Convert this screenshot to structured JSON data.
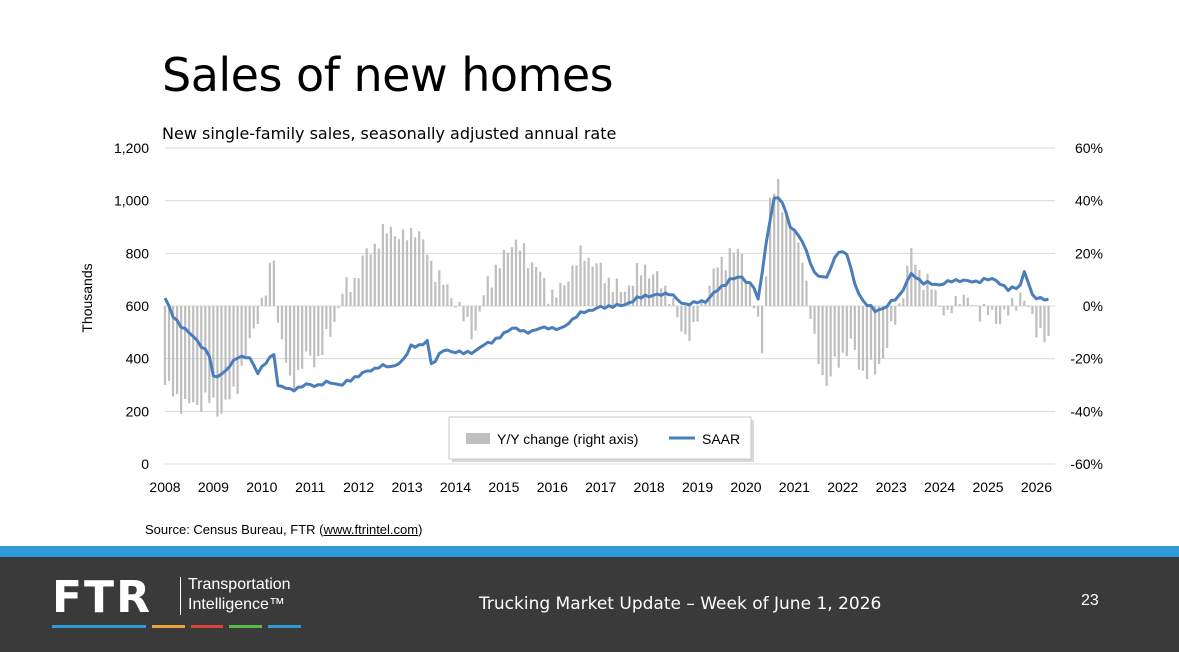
{
  "slide": {
    "title": "Sales of new homes",
    "source_prefix": "Source: Census Bureau, FTR (",
    "source_link": "www.ftrintel.com",
    "source_suffix": ")"
  },
  "footer": {
    "logo_text": "FTR",
    "logo_sub_line1": "Transportation",
    "logo_sub_line2": "Intelligence™",
    "title": "Trucking Market Update – Week of June 1, 2026",
    "page_number": "23",
    "logo_bar_colors": [
      "#2e9bd6",
      "#e8a33c",
      "#d9463b",
      "#5cb947",
      "#2e9bd6"
    ]
  },
  "chart_data": {
    "type": "bar+line",
    "subtitle": "New single-family sales, seasonally adjusted annual rate",
    "ylabel_left": "Thousands",
    "ylim_left": [
      0,
      1200
    ],
    "yticks_left": [
      0,
      200,
      400,
      600,
      800,
      1000,
      1200
    ],
    "ytick_labels_left": [
      "0",
      "200",
      "400",
      "600",
      "800",
      "1,000",
      "1,200"
    ],
    "ylim_right": [
      -60,
      60
    ],
    "yticks_right": [
      -60,
      -40,
      -20,
      0,
      20,
      40,
      60
    ],
    "ytick_labels_right": [
      "-60%",
      "-40%",
      "-20%",
      "0%",
      "20%",
      "40%",
      "60%"
    ],
    "x_start": "2008-01",
    "x_end": "2026-04",
    "x_tick_labels": [
      "2008",
      "2009",
      "2010",
      "2011",
      "2012",
      "2013",
      "2014",
      "2015",
      "2016",
      "2017",
      "2018",
      "2019",
      "2020",
      "2021",
      "2022",
      "2023",
      "2024",
      "2025",
      "2026"
    ],
    "grid": "horizontal",
    "legend": {
      "placement": "bottom-center",
      "bar_label": "Y/Y change (right axis)",
      "line_label": "SAAR"
    },
    "colors": {
      "bars": "#bfbfbf",
      "line": "#4a7ebb",
      "grid": "#d9d9d9"
    },
    "series": [
      {
        "name": "SAAR",
        "axis": "left",
        "anchors": [
          [
            "2008-01",
            630
          ],
          [
            "2008-03",
            560
          ],
          [
            "2008-06",
            510
          ],
          [
            "2008-09",
            470
          ],
          [
            "2008-12",
            410
          ],
          [
            "2009-01",
            330
          ],
          [
            "2009-04",
            350
          ],
          [
            "2009-07",
            410
          ],
          [
            "2009-10",
            400
          ],
          [
            "2009-12",
            350
          ],
          [
            "2010-03",
            400
          ],
          [
            "2010-04",
            420
          ],
          [
            "2010-05",
            300
          ],
          [
            "2010-08",
            280
          ],
          [
            "2010-12",
            300
          ],
          [
            "2011-03",
            300
          ],
          [
            "2011-06",
            310
          ],
          [
            "2011-09",
            300
          ],
          [
            "2011-12",
            330
          ],
          [
            "2012-03",
            350
          ],
          [
            "2012-06",
            370
          ],
          [
            "2012-09",
            370
          ],
          [
            "2012-12",
            390
          ],
          [
            "2013-02",
            450
          ],
          [
            "2013-05",
            450
          ],
          [
            "2013-06",
            470
          ],
          [
            "2013-07",
            380
          ],
          [
            "2013-10",
            430
          ],
          [
            "2013-12",
            430
          ],
          [
            "2014-03",
            420
          ],
          [
            "2014-06",
            430
          ],
          [
            "2014-09",
            460
          ],
          [
            "2014-12",
            480
          ],
          [
            "2015-03",
            520
          ],
          [
            "2015-06",
            500
          ],
          [
            "2015-09",
            510
          ],
          [
            "2015-12",
            520
          ],
          [
            "2016-03",
            510
          ],
          [
            "2016-06",
            550
          ],
          [
            "2016-09",
            580
          ],
          [
            "2016-12",
            590
          ],
          [
            "2017-03",
            600
          ],
          [
            "2017-06",
            600
          ],
          [
            "2017-09",
            620
          ],
          [
            "2017-12",
            640
          ],
          [
            "2018-03",
            640
          ],
          [
            "2018-06",
            650
          ],
          [
            "2018-09",
            610
          ],
          [
            "2018-12",
            610
          ],
          [
            "2019-03",
            620
          ],
          [
            "2019-06",
            660
          ],
          [
            "2019-09",
            700
          ],
          [
            "2019-12",
            710
          ],
          [
            "2020-03",
            670
          ],
          [
            "2020-04",
            620
          ],
          [
            "2020-06",
            840
          ],
          [
            "2020-08",
            1010
          ],
          [
            "2020-10",
            1000
          ],
          [
            "2020-12",
            900
          ],
          [
            "2021-03",
            850
          ],
          [
            "2021-06",
            720
          ],
          [
            "2021-09",
            710
          ],
          [
            "2021-12",
            810
          ],
          [
            "2022-02",
            800
          ],
          [
            "2022-04",
            680
          ],
          [
            "2022-06",
            620
          ],
          [
            "2022-09",
            580
          ],
          [
            "2022-12",
            600
          ],
          [
            "2023-03",
            640
          ],
          [
            "2023-06",
            720
          ],
          [
            "2023-09",
            690
          ],
          [
            "2023-12",
            680
          ],
          [
            "2024-03",
            690
          ],
          [
            "2024-06",
            700
          ],
          [
            "2024-09",
            690
          ],
          [
            "2024-12",
            700
          ],
          [
            "2025-03",
            700
          ],
          [
            "2025-06",
            660
          ],
          [
            "2025-09",
            680
          ],
          [
            "2025-10",
            730
          ],
          [
            "2025-12",
            640
          ],
          [
            "2026-02",
            630
          ],
          [
            "2026-04",
            620
          ]
        ]
      },
      {
        "name": "Y/Y change (right axis)",
        "axis": "right",
        "anchors": [
          [
            "2008-01",
            -30
          ],
          [
            "2008-06",
            -38
          ],
          [
            "2008-12",
            -36
          ],
          [
            "2009-03",
            -40
          ],
          [
            "2009-06",
            -33
          ],
          [
            "2009-09",
            -20
          ],
          [
            "2009-12",
            -3
          ],
          [
            "2010-02",
            5
          ],
          [
            "2010-04",
            20
          ],
          [
            "2010-05",
            -5
          ],
          [
            "2010-08",
            -30
          ],
          [
            "2010-12",
            -20
          ],
          [
            "2011-03",
            -20
          ],
          [
            "2011-06",
            -10
          ],
          [
            "2011-09",
            5
          ],
          [
            "2011-12",
            10
          ],
          [
            "2012-03",
            20
          ],
          [
            "2012-06",
            25
          ],
          [
            "2012-09",
            30
          ],
          [
            "2012-12",
            25
          ],
          [
            "2013-03",
            30
          ],
          [
            "2013-06",
            20
          ],
          [
            "2013-09",
            10
          ],
          [
            "2013-12",
            5
          ],
          [
            "2014-03",
            -5
          ],
          [
            "2014-06",
            -10
          ],
          [
            "2014-09",
            10
          ],
          [
            "2014-12",
            15
          ],
          [
            "2015-03",
            25
          ],
          [
            "2015-06",
            20
          ],
          [
            "2015-09",
            15
          ],
          [
            "2015-12",
            5
          ],
          [
            "2016-03",
            5
          ],
          [
            "2016-06",
            15
          ],
          [
            "2016-09",
            20
          ],
          [
            "2016-12",
            15
          ],
          [
            "2017-03",
            10
          ],
          [
            "2017-06",
            5
          ],
          [
            "2017-09",
            10
          ],
          [
            "2017-12",
            15
          ],
          [
            "2018-03",
            10
          ],
          [
            "2018-06",
            5
          ],
          [
            "2018-09",
            -10
          ],
          [
            "2018-12",
            -10
          ],
          [
            "2019-03",
            5
          ],
          [
            "2019-06",
            15
          ],
          [
            "2019-09",
            20
          ],
          [
            "2019-12",
            20
          ],
          [
            "2020-03",
            0
          ],
          [
            "2020-05",
            -15
          ],
          [
            "2020-07",
            40
          ],
          [
            "2020-09",
            45
          ],
          [
            "2020-12",
            30
          ],
          [
            "2021-03",
            20
          ],
          [
            "2021-06",
            -15
          ],
          [
            "2021-09",
            -30
          ],
          [
            "2021-12",
            -20
          ],
          [
            "2022-03",
            -15
          ],
          [
            "2022-06",
            -25
          ],
          [
            "2022-09",
            -25
          ],
          [
            "2022-12",
            -15
          ],
          [
            "2023-03",
            0
          ],
          [
            "2023-06",
            20
          ],
          [
            "2023-09",
            10
          ],
          [
            "2023-12",
            5
          ],
          [
            "2024-03",
            -5
          ],
          [
            "2024-06",
            5
          ],
          [
            "2024-09",
            0
          ],
          [
            "2024-12",
            -2
          ],
          [
            "2025-03",
            -5
          ],
          [
            "2025-06",
            -3
          ],
          [
            "2025-09",
            5
          ],
          [
            "2025-12",
            -5
          ],
          [
            "2026-02",
            -10
          ],
          [
            "2026-04",
            -15
          ]
        ]
      }
    ]
  }
}
